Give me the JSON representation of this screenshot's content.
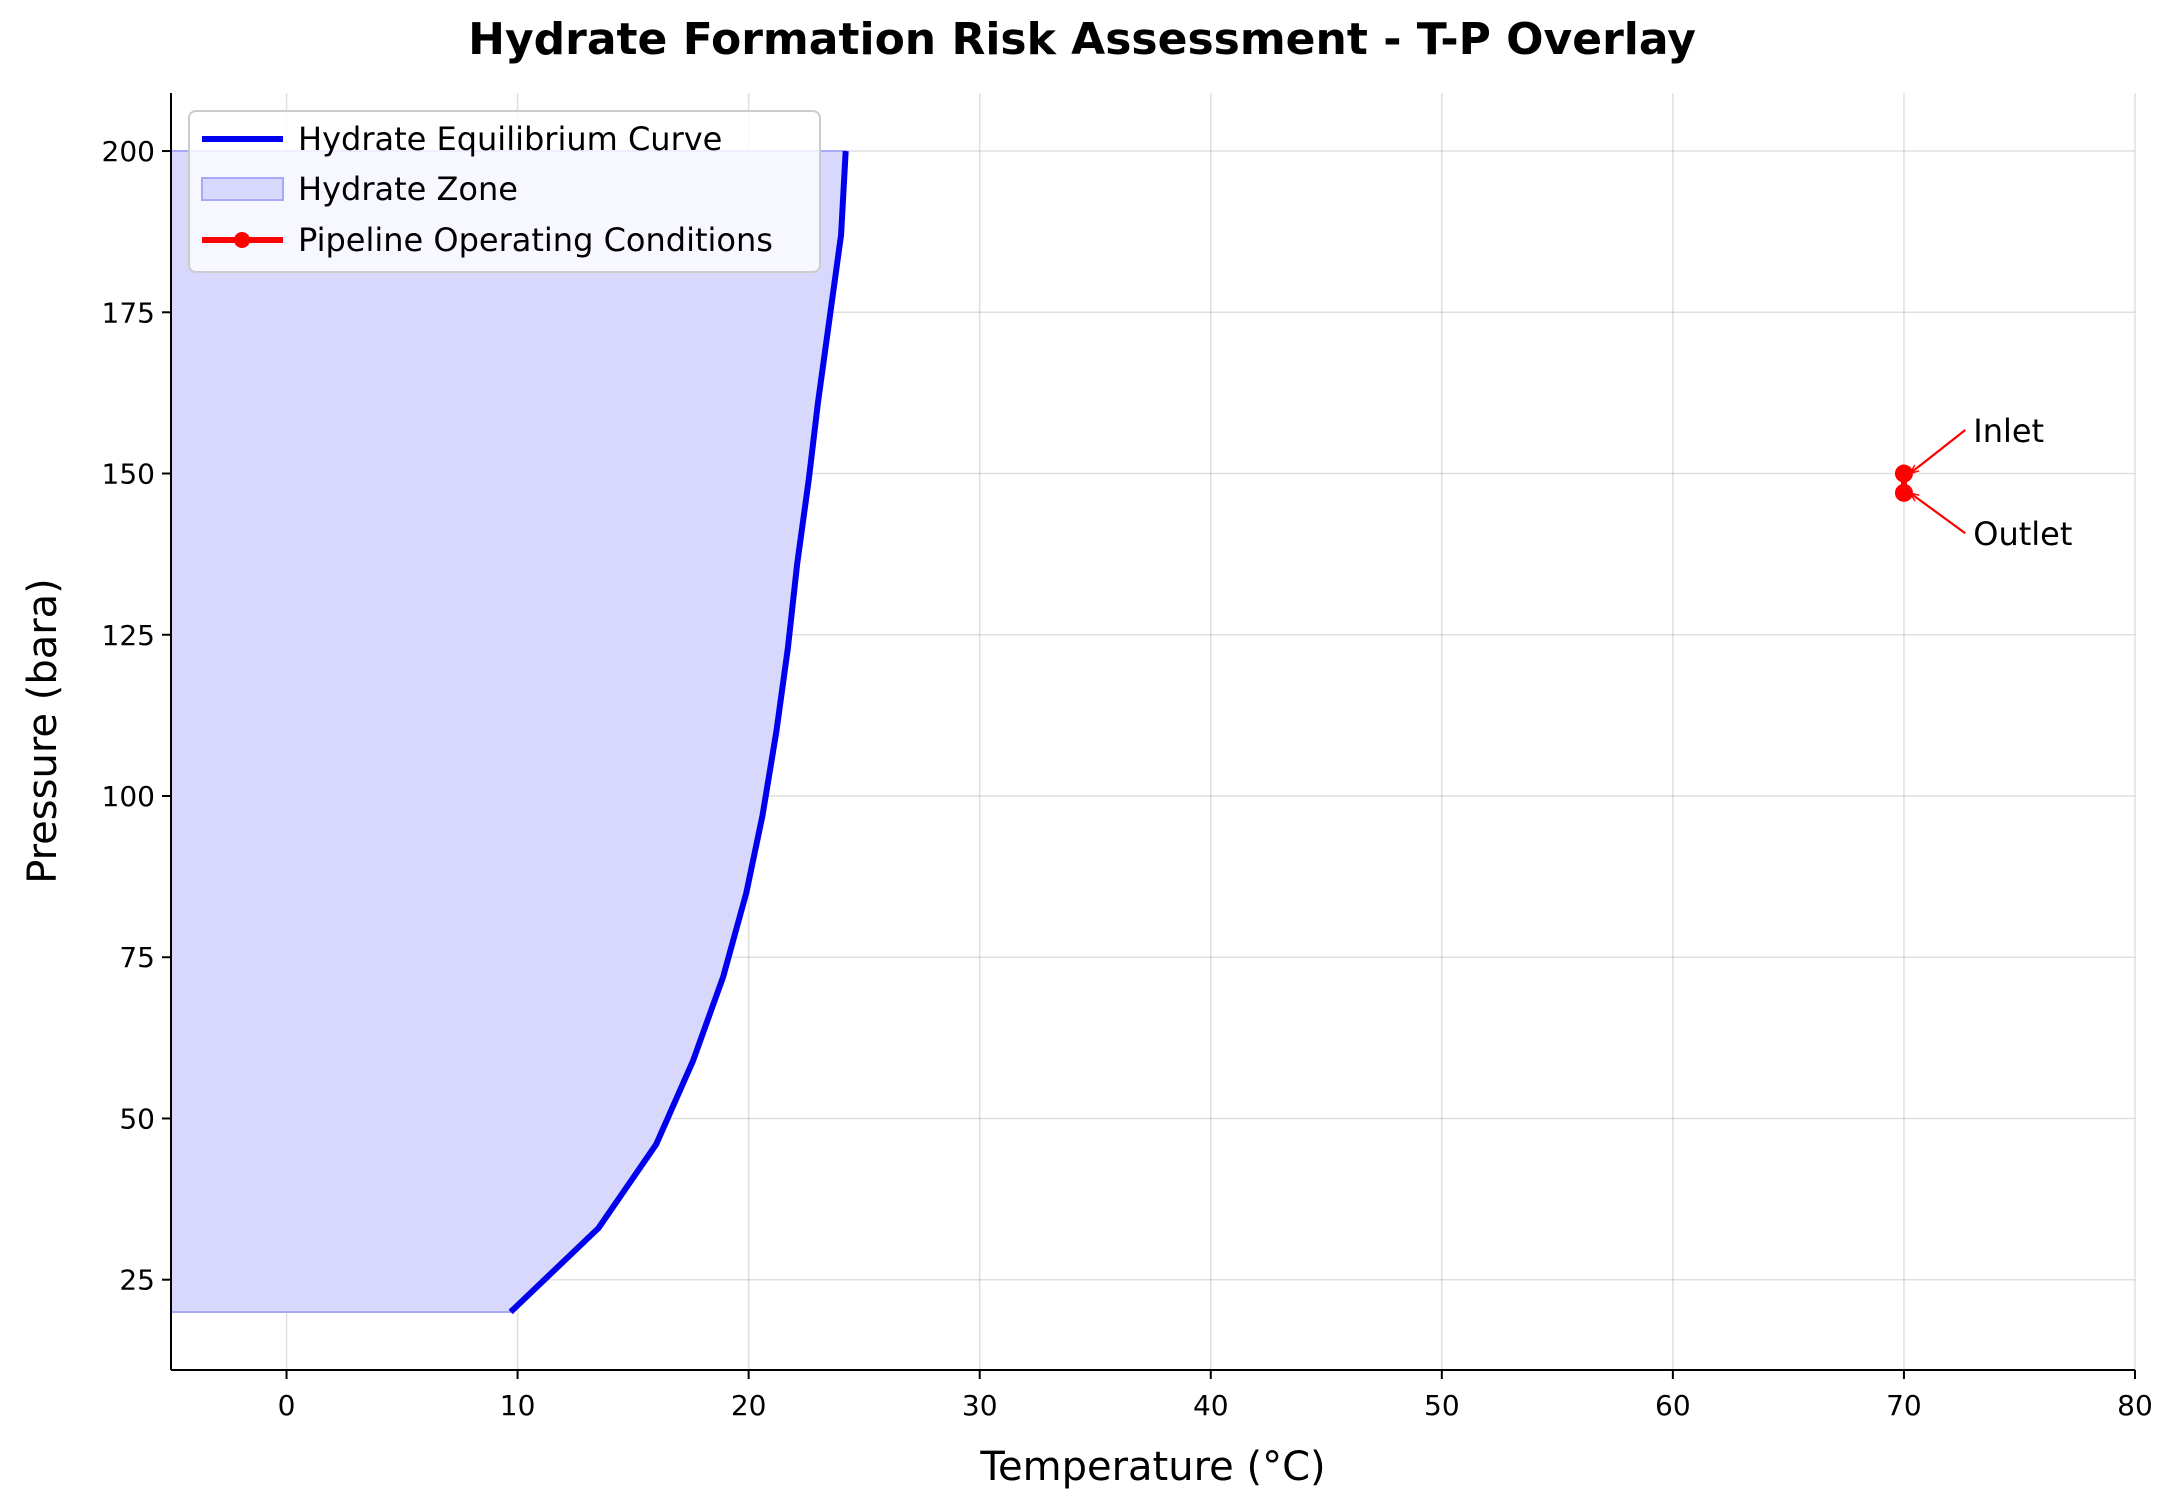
{
  "chart_data": {
    "type": "line",
    "title": "Hydrate Formation Risk Assessment - T-P Overlay",
    "xlabel": "Temperature (°C)",
    "ylabel": "Pressure (bara)",
    "xlim": [
      -5,
      80
    ],
    "ylim": [
      11,
      209
    ],
    "x_ticks": [
      0,
      10,
      20,
      30,
      40,
      50,
      60,
      70,
      80
    ],
    "y_ticks": [
      25,
      50,
      75,
      100,
      125,
      150,
      175,
      200
    ],
    "grid": true,
    "legend_position": "upper-left",
    "series": [
      {
        "name": "Hydrate Equilibrium Curve",
        "kind": "line",
        "color": "#0000ee",
        "x": [
          9.7,
          13.5,
          16.0,
          17.6,
          18.9,
          19.9,
          20.6,
          21.2,
          21.7,
          22.1,
          22.6,
          23.0,
          23.5,
          24.0,
          24.2
        ],
        "y": [
          20,
          33,
          46,
          59,
          72,
          85,
          97,
          110,
          123,
          136,
          149,
          161,
          174,
          187,
          200
        ]
      },
      {
        "name": "Hydrate Zone",
        "kind": "area",
        "color": "#d8d8fc",
        "edge_color": "#a8a8f8",
        "fill_from_x": -5
      },
      {
        "name": "Pipeline Operating Conditions",
        "kind": "line-marker",
        "color": "#ff0000",
        "x": [
          70.0,
          70.0
        ],
        "y": [
          150,
          147
        ]
      }
    ],
    "annotations": [
      {
        "text": "Inlet",
        "target": [
          70.0,
          150
        ],
        "text_pos": [
          73.0,
          155.5
        ]
      },
      {
        "text": "Outlet",
        "target": [
          70.0,
          147
        ],
        "text_pos": [
          73.0,
          139.5
        ]
      }
    ]
  }
}
